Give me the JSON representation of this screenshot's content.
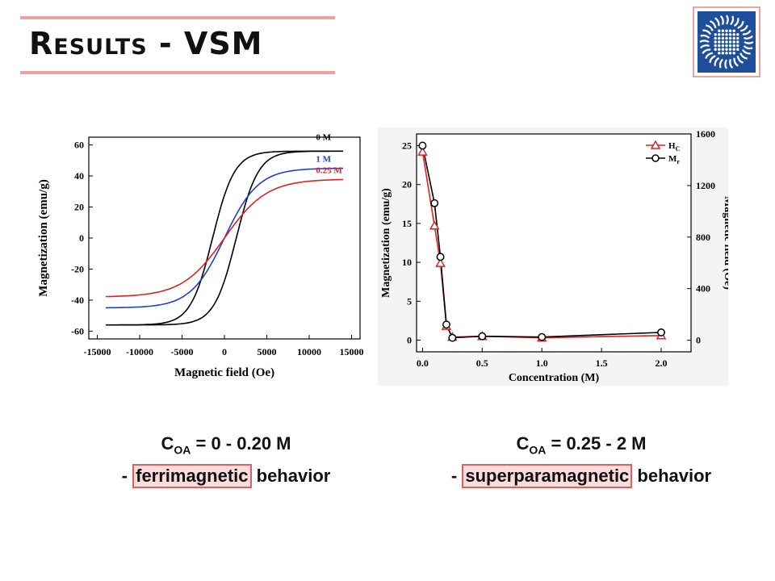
{
  "slide": {
    "title": "Results - VSM"
  },
  "colors": {
    "accent": "#f0a0a0",
    "highlight_border": "#e06060",
    "highlight_fill": "#fadcdc",
    "logo_blue": "#1f4e9a"
  },
  "icons": {
    "logo": "institute-logo-icon"
  },
  "captions": {
    "left": {
      "c_label": "C",
      "c_sub": "OA",
      "range": " = 0 - 0.20 M",
      "dash": "- ",
      "keyword": "ferrimagnetic",
      "rest": " behavior"
    },
    "right": {
      "c_label": "C",
      "c_sub": "OA",
      "range": " = 0.25 - 2 M",
      "dash": "- ",
      "keyword": "superparamagnetic",
      "rest": " behavior"
    }
  },
  "chart_data": [
    {
      "type": "line",
      "xlabel": "Magnetic field (Oe)",
      "ylabel": "Magnetization (emu/g)",
      "xlim": [
        -16000,
        16000
      ],
      "ylim": [
        -65,
        65
      ],
      "xticks": [
        -15000,
        -10000,
        -5000,
        0,
        5000,
        10000,
        15000
      ],
      "yticks": [
        -60,
        -40,
        -20,
        0,
        20,
        40,
        60
      ],
      "x_tick_labels": [
        "-15000",
        "-10000",
        "-5000",
        "0",
        "5000",
        "10000",
        "15000"
      ],
      "y_tick_labels": [
        "-60",
        "-40",
        "-20",
        "0",
        "20",
        "40",
        "60"
      ],
      "series": [
        {
          "name": "0 M",
          "color": "#000000",
          "ms": 56,
          "hc": 1400,
          "w": 2600
        },
        {
          "name": "1 M",
          "color": "#1f3fd0",
          "ms": 45,
          "hc": 0,
          "w": 4000
        },
        {
          "name": "0.25 M",
          "color": "#e02020",
          "ms": 38,
          "hc": 0,
          "w": 5000
        }
      ],
      "annotations": [
        "0 M",
        "1 M",
        "0.25 M"
      ]
    },
    {
      "type": "line",
      "xlabel": "Concentration (M)",
      "ylabel": "Magnetization (emu/g)",
      "y2label": "Magnetic field (Oe)",
      "xlim": [
        -0.05,
        2.25
      ],
      "ylim": [
        -1.5,
        26.5
      ],
      "y2lim": [
        -90,
        1600
      ],
      "xticks": [
        0.0,
        0.5,
        1.0,
        1.5,
        2.0
      ],
      "x_tick_labels": [
        "0.0",
        "0.5",
        "1.0",
        "1.5",
        "2.0"
      ],
      "yticks": [
        0,
        5,
        10,
        15,
        20,
        25
      ],
      "y_tick_labels": [
        "0",
        "5",
        "10",
        "15",
        "20",
        "25"
      ],
      "y2ticks": [
        0,
        400,
        800,
        1200,
        1600
      ],
      "y2_tick_labels": [
        "0",
        "400",
        "800",
        "1200",
        "1600"
      ],
      "legend": [
        "H",
        "M"
      ],
      "legend_subs": [
        "C",
        "r"
      ],
      "legend_placement": "top-right",
      "x": [
        0.0,
        0.1,
        0.15,
        0.2,
        0.25,
        0.5,
        1.0,
        2.0
      ],
      "series": [
        {
          "name": "HC",
          "color": "#e02020",
          "marker": "triangle",
          "values": [
            24.2,
            14.7,
            9.9,
            1.8,
            0.4,
            0.5,
            0.3,
            0.6
          ]
        },
        {
          "name": "Mr",
          "color": "#000000",
          "marker": "circle",
          "values": [
            25.0,
            17.6,
            10.7,
            2.0,
            0.3,
            0.5,
            0.4,
            1.0
          ]
        }
      ]
    }
  ]
}
